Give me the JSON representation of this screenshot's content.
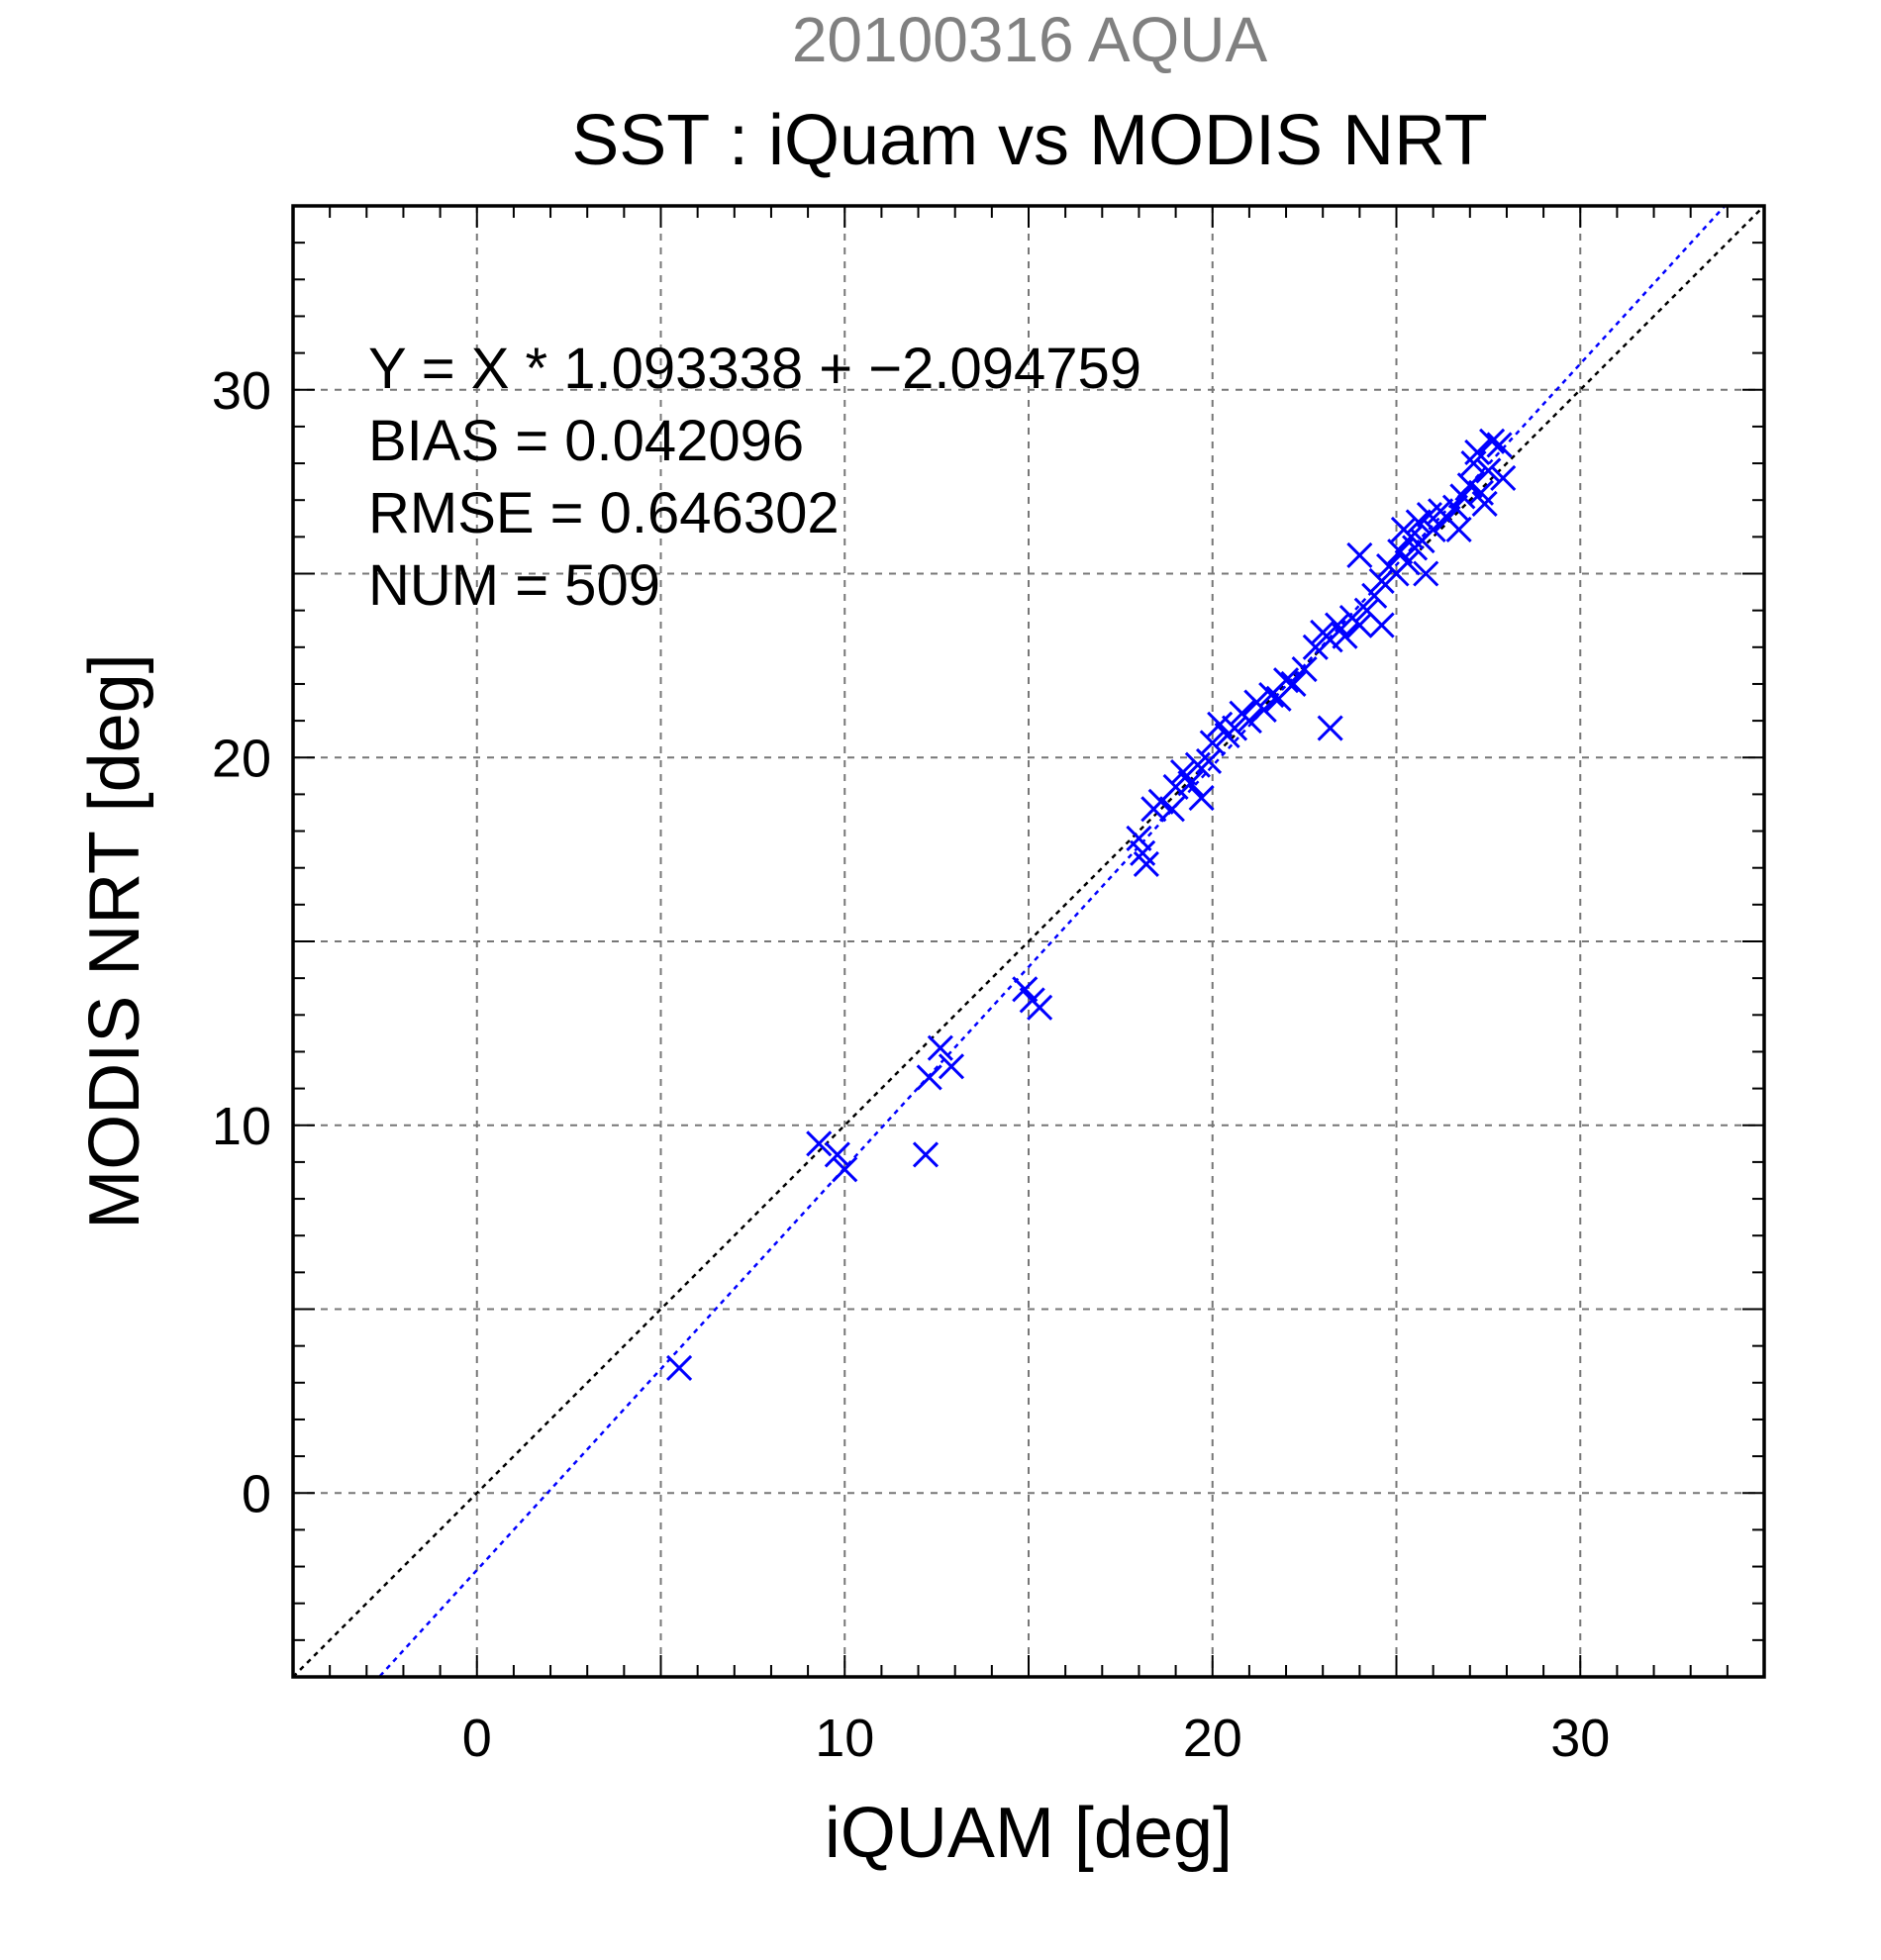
{
  "chart_data": {
    "type": "scatter",
    "title": "SST : iQuam vs MODIS NRT",
    "subtitle": "20100316 AQUA",
    "xlabel": "iQUAM [deg]",
    "ylabel": "MODIS NRT [deg]",
    "xlim": [
      -5,
      35
    ],
    "ylim": [
      -5,
      35
    ],
    "xticks": [
      0,
      10,
      20,
      30
    ],
    "yticks": [
      0,
      10,
      20,
      30
    ],
    "grid": true,
    "stats": [
      "Y = X * 1.093338 + −2.094759",
      "BIAS = 0.042096",
      "RMSE = 0.646302",
      "NUM = 509"
    ],
    "lines": [
      {
        "kind": "identity",
        "slope": 1,
        "intercept": 0,
        "color": "#000000"
      },
      {
        "kind": "regression",
        "slope": 1.093338,
        "intercept": -2.094759,
        "color": "#0000ff"
      }
    ],
    "series": [
      {
        "color": "#0000ff",
        "marker": "x",
        "points": [
          [
            5.5,
            3.4
          ],
          [
            9.3,
            9.5
          ],
          [
            9.8,
            9.2
          ],
          [
            10.0,
            8.8
          ],
          [
            12.2,
            9.2
          ],
          [
            12.3,
            11.3
          ],
          [
            12.6,
            12.1
          ],
          [
            12.9,
            11.6
          ],
          [
            14.9,
            13.7
          ],
          [
            15.1,
            13.4
          ],
          [
            15.3,
            13.2
          ],
          [
            18.0,
            17.8
          ],
          [
            18.1,
            17.4
          ],
          [
            18.2,
            17.1
          ],
          [
            18.4,
            18.6
          ],
          [
            18.6,
            18.8
          ],
          [
            18.9,
            18.6
          ],
          [
            19.0,
            19.2
          ],
          [
            19.2,
            19.6
          ],
          [
            19.4,
            19.3
          ],
          [
            19.6,
            19.8
          ],
          [
            19.7,
            18.9
          ],
          [
            19.9,
            19.9
          ],
          [
            20.0,
            20.4
          ],
          [
            20.2,
            20.9
          ],
          [
            20.4,
            20.6
          ],
          [
            20.6,
            20.8
          ],
          [
            20.8,
            21.2
          ],
          [
            21.0,
            21.0
          ],
          [
            21.2,
            21.5
          ],
          [
            21.4,
            21.3
          ],
          [
            21.6,
            21.7
          ],
          [
            21.8,
            21.6
          ],
          [
            22.0,
            22.1
          ],
          [
            22.2,
            22.0
          ],
          [
            22.5,
            22.4
          ],
          [
            22.8,
            23.0
          ],
          [
            23.0,
            23.4
          ],
          [
            23.2,
            23.2
          ],
          [
            23.2,
            20.8
          ],
          [
            23.4,
            23.6
          ],
          [
            23.6,
            23.3
          ],
          [
            23.8,
            23.8
          ],
          [
            24.0,
            23.6
          ],
          [
            24.0,
            25.5
          ],
          [
            24.2,
            24.0
          ],
          [
            24.4,
            24.4
          ],
          [
            24.6,
            23.6
          ],
          [
            24.6,
            24.8
          ],
          [
            24.8,
            25.2
          ],
          [
            25.0,
            25.0
          ],
          [
            25.1,
            25.6
          ],
          [
            25.2,
            26.2
          ],
          [
            25.3,
            25.3
          ],
          [
            25.4,
            26.0
          ],
          [
            25.5,
            25.7
          ],
          [
            25.6,
            26.4
          ],
          [
            25.7,
            25.9
          ],
          [
            25.8,
            25.0
          ],
          [
            25.9,
            26.6
          ],
          [
            26.0,
            26.2
          ],
          [
            26.2,
            26.7
          ],
          [
            26.4,
            26.5
          ],
          [
            26.6,
            26.8
          ],
          [
            26.7,
            26.2
          ],
          [
            26.8,
            27.1
          ],
          [
            27.0,
            27.4
          ],
          [
            27.1,
            28.0
          ],
          [
            27.2,
            28.3
          ],
          [
            27.3,
            27.2
          ],
          [
            27.4,
            26.9
          ],
          [
            27.5,
            27.8
          ],
          [
            27.6,
            28.6
          ],
          [
            27.8,
            28.5
          ],
          [
            27.9,
            27.6
          ]
        ]
      }
    ]
  }
}
